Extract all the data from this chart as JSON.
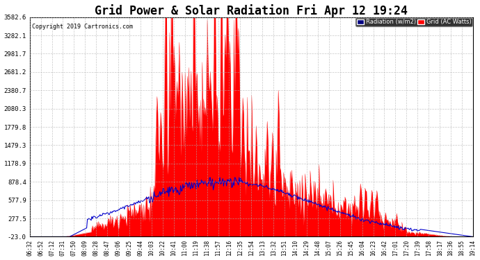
{
  "title": "Grid Power & Solar Radiation Fri Apr 12 19:24",
  "copyright": "Copyright 2019 Cartronics.com",
  "background_color": "#ffffff",
  "plot_background": "#ffffff",
  "grid_color": "#b0b0b0",
  "yticks": [
    -23.0,
    277.5,
    577.9,
    878.4,
    1178.9,
    1479.3,
    1779.8,
    2080.3,
    2380.7,
    2681.2,
    2981.7,
    3282.1,
    3582.6
  ],
  "ymin": -23.0,
  "ymax": 3582.6,
  "legend_labels": [
    "Radiation (w/m2)",
    "Grid (AC Watts)"
  ],
  "radiation_color": "#0000cc",
  "grid_ac_color": "#ff0000",
  "x_label_fontsize": 5.5,
  "title_fontsize": 12,
  "xtick_labels": [
    "06:32",
    "06:52",
    "07:12",
    "07:31",
    "07:50",
    "08:09",
    "08:28",
    "08:47",
    "09:06",
    "09:25",
    "09:44",
    "10:03",
    "10:22",
    "10:41",
    "11:00",
    "11:19",
    "11:38",
    "11:57",
    "12:16",
    "12:35",
    "12:54",
    "13:13",
    "13:32",
    "13:51",
    "14:10",
    "14:29",
    "14:48",
    "15:07",
    "15:26",
    "15:45",
    "16:04",
    "16:23",
    "16:42",
    "17:01",
    "17:20",
    "17:39",
    "17:58",
    "18:17",
    "18:36",
    "18:55",
    "19:14"
  ]
}
